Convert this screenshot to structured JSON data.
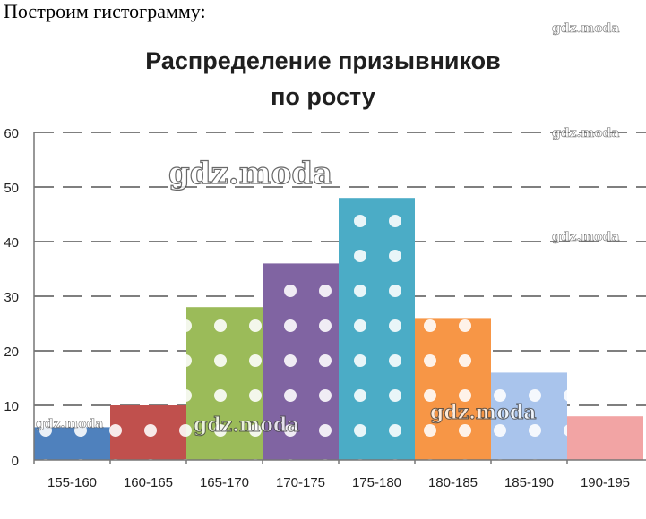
{
  "intro_text": "Построим гистограмму:",
  "watermark": "gdz.moda",
  "chart_data": {
    "type": "bar",
    "title_line1": "Распределение призывников",
    "title_line2": "по росту",
    "categories": [
      "155-160",
      "160-165",
      "165-170",
      "170-175",
      "175-180",
      "180-185",
      "185-190",
      "190-195"
    ],
    "values": [
      6,
      10,
      28,
      36,
      48,
      26,
      16,
      8
    ],
    "colors": [
      "#4f81bd",
      "#c0504d",
      "#9bbb59",
      "#8064a2",
      "#4bacc6",
      "#f79646",
      "#a9c4ec",
      "#f2a4a4"
    ],
    "dotted": [
      true,
      true,
      true,
      true,
      true,
      true,
      true,
      false
    ],
    "ylim": [
      0,
      60
    ],
    "yticks": [
      0,
      10,
      20,
      30,
      40,
      50,
      60
    ],
    "grid": true,
    "xlabel": "",
    "ylabel": ""
  }
}
